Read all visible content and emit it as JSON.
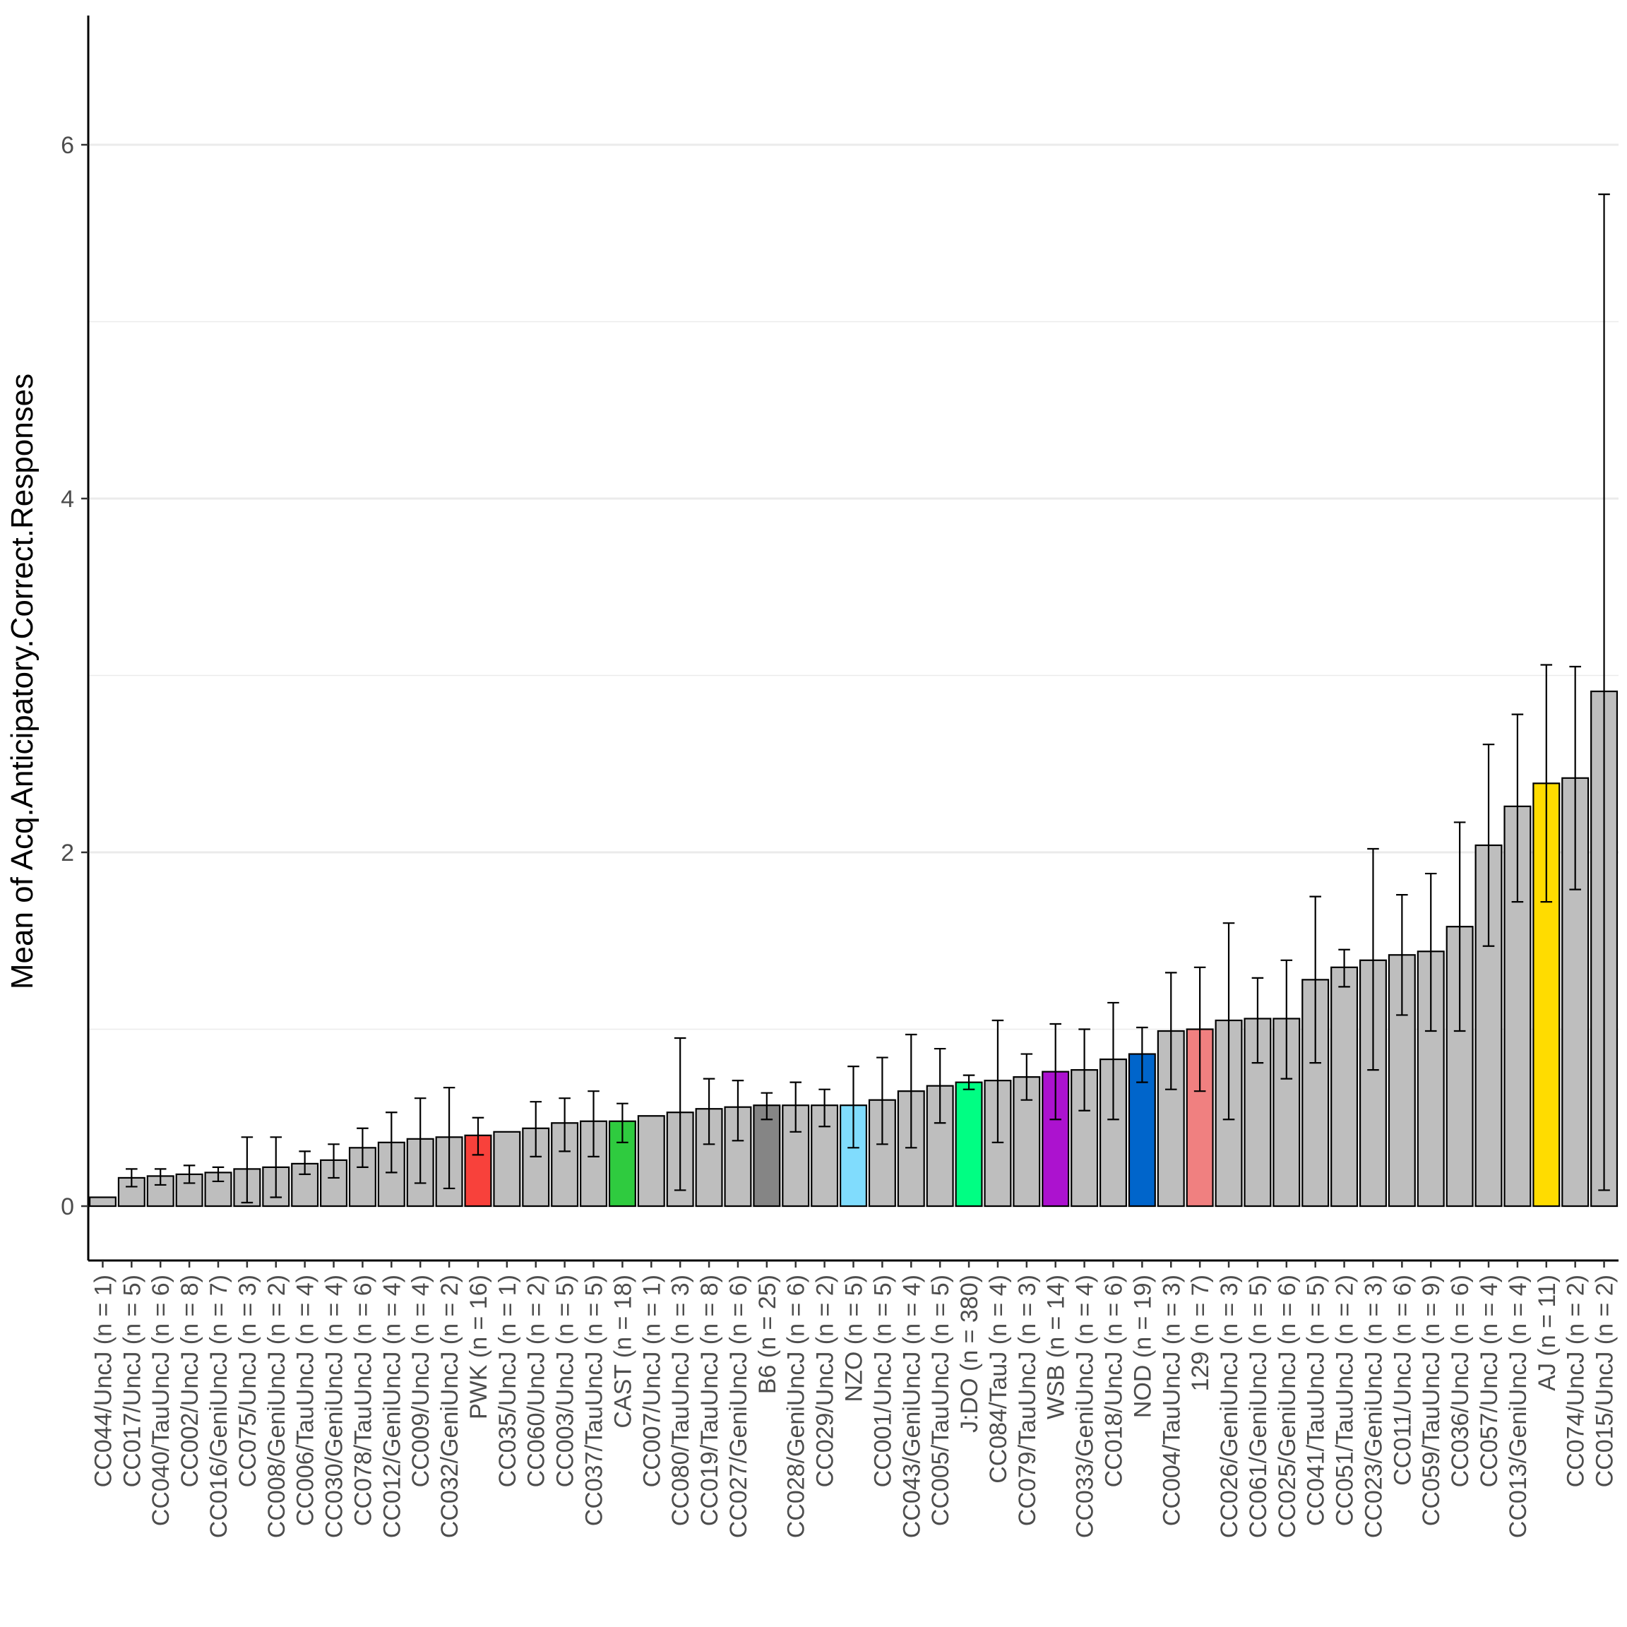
{
  "chart_data": {
    "type": "bar",
    "title": "",
    "xlabel": "",
    "ylabel": "Mean of Acq.Anticipatory.Correct.Responses",
    "ylim": [
      -0.3,
      6.8
    ],
    "yticks": [
      0,
      2,
      4,
      6
    ],
    "yticks_labels": [
      "0",
      "2",
      "4",
      "6"
    ],
    "minor_gridlines": [
      1,
      3,
      5
    ],
    "grid": "horizontal",
    "legend": "none",
    "default_fill": "#bebebe",
    "categories": [
      "CC044/UncJ (n = 1)",
      "CC017/UncJ (n = 5)",
      "CC040/TauUncJ (n = 6)",
      "CC002/UncJ (n = 8)",
      "CC016/GeniUncJ (n = 7)",
      "CC075/UncJ (n = 3)",
      "CC008/GeniUncJ (n = 2)",
      "CC006/TauUncJ (n = 4)",
      "CC030/GeniUncJ (n = 4)",
      "CC078/TauUncJ (n = 6)",
      "CC012/GeniUncJ (n = 4)",
      "CC009/UncJ (n = 4)",
      "CC032/GeniUncJ (n = 2)",
      "PWK (n = 16)",
      "CC035/UncJ (n = 1)",
      "CC060/UncJ (n = 2)",
      "CC003/UncJ (n = 5)",
      "CC037/TauUncJ (n = 5)",
      "CAST (n = 18)",
      "CC007/UncJ (n = 1)",
      "CC080/TauUncJ (n = 3)",
      "CC019/TauUncJ (n = 8)",
      "CC027/GeniUncJ (n = 6)",
      "B6 (n = 25)",
      "CC028/GeniUncJ (n = 6)",
      "CC029/UncJ (n = 2)",
      "NZO (n = 5)",
      "CC001/UncJ (n = 5)",
      "CC043/GeniUncJ (n = 4)",
      "CC005/TauUncJ (n = 5)",
      "J:DO (n = 380)",
      "CC084/TauJ (n = 4)",
      "CC079/TauUncJ (n = 3)",
      "WSB (n = 14)",
      "CC033/GeniUncJ (n = 4)",
      "CC018/UncJ (n = 6)",
      "NOD (n = 19)",
      "CC004/TauUncJ (n = 3)",
      "129 (n = 7)",
      "CC026/GeniUncJ (n = 3)",
      "CC061/GeniUncJ (n = 5)",
      "CC025/GeniUncJ (n = 6)",
      "CC041/TauUncJ (n = 5)",
      "CC051/TauUncJ (n = 2)",
      "CC023/GeniUncJ (n = 3)",
      "CC011/UncJ (n = 6)",
      "CC059/TauUncJ (n = 9)",
      "CC036/UncJ (n = 6)",
      "CC057/UncJ (n = 4)",
      "CC013/GeniUncJ (n = 4)",
      "AJ (n = 11)",
      "CC074/UncJ (n = 2)",
      "CC015/UncJ (n = 2)"
    ],
    "values": [
      0.05,
      0.16,
      0.17,
      0.18,
      0.19,
      0.21,
      0.22,
      0.24,
      0.26,
      0.33,
      0.36,
      0.38,
      0.39,
      0.4,
      0.42,
      0.44,
      0.47,
      0.48,
      0.48,
      0.51,
      0.53,
      0.55,
      0.56,
      0.57,
      0.57,
      0.57,
      0.57,
      0.6,
      0.65,
      0.68,
      0.7,
      0.71,
      0.73,
      0.76,
      0.77,
      0.83,
      0.86,
      0.99,
      1.0,
      1.05,
      1.06,
      1.06,
      1.28,
      1.35,
      1.39,
      1.42,
      1.44,
      1.58,
      2.04,
      2.26,
      2.39,
      2.42,
      2.91
    ],
    "error_bars": [
      null,
      [
        0.11,
        0.21
      ],
      [
        0.12,
        0.21
      ],
      [
        0.13,
        0.23
      ],
      [
        0.14,
        0.22
      ],
      [
        0.02,
        0.39
      ],
      [
        0.05,
        0.39
      ],
      [
        0.18,
        0.31
      ],
      [
        0.16,
        0.35
      ],
      [
        0.22,
        0.44
      ],
      [
        0.19,
        0.53
      ],
      [
        0.13,
        0.61
      ],
      [
        0.1,
        0.67
      ],
      [
        0.29,
        0.5
      ],
      null,
      [
        0.28,
        0.59
      ],
      [
        0.31,
        0.61
      ],
      [
        0.28,
        0.65
      ],
      [
        0.36,
        0.58
      ],
      null,
      [
        0.09,
        0.95
      ],
      [
        0.35,
        0.72
      ],
      [
        0.37,
        0.71
      ],
      [
        0.49,
        0.64
      ],
      [
        0.42,
        0.7
      ],
      [
        0.45,
        0.66
      ],
      [
        0.33,
        0.79
      ],
      [
        0.35,
        0.84
      ],
      [
        0.33,
        0.97
      ],
      [
        0.47,
        0.89
      ],
      [
        0.66,
        0.74
      ],
      [
        0.36,
        1.05
      ],
      [
        0.6,
        0.86
      ],
      [
        0.49,
        1.03
      ],
      [
        0.54,
        1.0
      ],
      [
        0.49,
        1.15
      ],
      [
        0.7,
        1.01
      ],
      [
        0.66,
        1.32
      ],
      [
        0.65,
        1.35
      ],
      [
        0.49,
        1.6
      ],
      [
        0.81,
        1.29
      ],
      [
        0.72,
        1.39
      ],
      [
        0.81,
        1.75
      ],
      [
        1.24,
        1.45
      ],
      [
        0.77,
        2.02
      ],
      [
        1.08,
        1.76
      ],
      [
        0.99,
        1.88
      ],
      [
        0.99,
        2.17
      ],
      [
        1.47,
        2.61
      ],
      [
        1.72,
        2.78
      ],
      [
        1.72,
        3.06
      ],
      [
        1.79,
        3.05
      ],
      [
        0.09,
        5.72
      ]
    ],
    "highlight_colors": {
      "PWK (n = 16)": "#f8413b",
      "CAST (n = 18)": "#2fcb3f",
      "B6 (n = 25)": "#858585",
      "NZO (n = 5)": "#80dcfd",
      "J:DO (n = 380)": "#00fe83",
      "WSB (n = 14)": "#ac12cf",
      "NOD (n = 19)": "#0065cb",
      "129 (n = 7)": "#f08080",
      "AJ (n = 11)": "#ffdc00"
    }
  }
}
